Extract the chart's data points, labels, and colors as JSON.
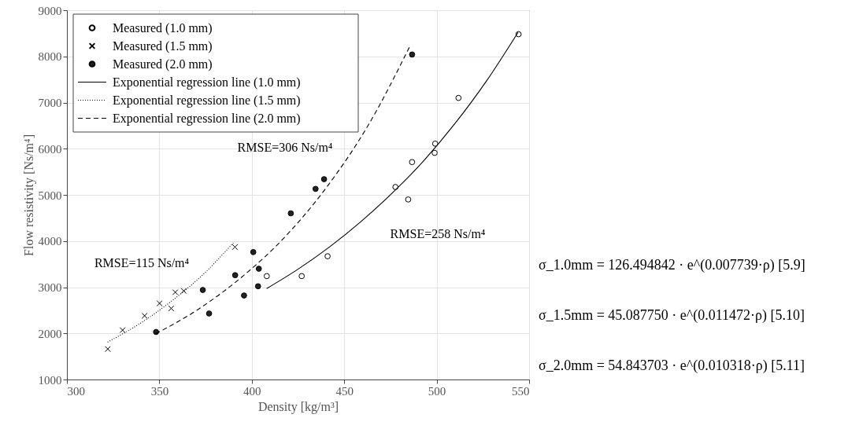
{
  "chart_data": {
    "type": "scatter",
    "xlabel": "Density [kg/m³]",
    "ylabel": "Flow resistivity [Ns/m⁴]",
    "xlim": [
      300,
      550
    ],
    "xticks": [
      300,
      350,
      400,
      450,
      500,
      550
    ],
    "ylim": [
      1000,
      9000
    ],
    "yticks": [
      1000,
      2000,
      3000,
      4000,
      5000,
      6000,
      7000,
      8000,
      9000
    ],
    "grid": true,
    "legend": "top left",
    "series": [
      {
        "name": "Measured (1.0 mm)",
        "marker": "circle",
        "color": "#ffffff",
        "x": [
          408.1,
          427,
          441,
          477.7,
          484.6,
          486.7,
          498.9,
          499.2,
          511.8,
          544.3
        ],
        "values": [
          3240,
          3240,
          3670,
          5170,
          4900,
          5710,
          5910,
          6110,
          7100,
          8480
        ]
      },
      {
        "name": "Measured (1.5 mm)",
        "marker": "cross",
        "color": "#000000",
        "x": [
          322.1,
          330.1,
          342,
          350.1,
          356.4,
          358.6,
          363.2,
          390.9
        ],
        "values": [
          1660,
          2070,
          2380,
          2650,
          2540,
          2890,
          2920,
          3870
        ]
      },
      {
        "name": "Measured (2.0 mm)",
        "marker": "circle",
        "color": "#222222",
        "x": [
          348.2,
          373.5,
          376.9,
          391.0,
          395.8,
          400.8,
          403.4,
          403.8,
          421.1,
          434.5,
          439.1,
          486.7
        ],
        "values": [
          2030,
          2940,
          2430,
          3260,
          2820,
          3760,
          3020,
          3400,
          4600,
          5130,
          5340,
          8040
        ]
      },
      {
        "name": "Exponential regression line (1.0 mm)",
        "type": "line",
        "line_style": "solid",
        "color": "#000000",
        "x": [
          408,
          425,
          442,
          459,
          476,
          493,
          510,
          527,
          544
        ],
        "values": [
          2970,
          3390,
          3870,
          4420,
          5040,
          5740,
          6550,
          7470,
          8520
        ]
      },
      {
        "name": "Exponential regression line (1.5 mm)",
        "type": "line",
        "line_style": "dotted",
        "color": "#000000",
        "x": [
          322,
          339,
          356,
          373,
          390
        ],
        "values": [
          1810,
          2200,
          2680,
          3250,
          3960
        ]
      },
      {
        "name": "Exponential regression line (2.0 mm)",
        "type": "line",
        "line_style": "dashed",
        "color": "#000000",
        "x": [
          348,
          371,
          394,
          417,
          440,
          463,
          486
        ],
        "values": [
          1990,
          2520,
          3200,
          4050,
          5140,
          6510,
          8260
        ]
      }
    ],
    "annotations": [
      "RMSE=306 Ns/m⁴",
      "RMSE=258 Ns/m⁴",
      "RMSE=115 Ns/m⁴",
      "σ_1.0mm = 126.494842 · e^(0.007739·ρ)   [5.9]",
      "σ_1.5mm = 45.087750 · e^(0.011472·ρ)   [5.10]",
      "σ_2.0mm = 54.843703 · e^(0.010318·ρ)   [5.11]"
    ]
  }
}
